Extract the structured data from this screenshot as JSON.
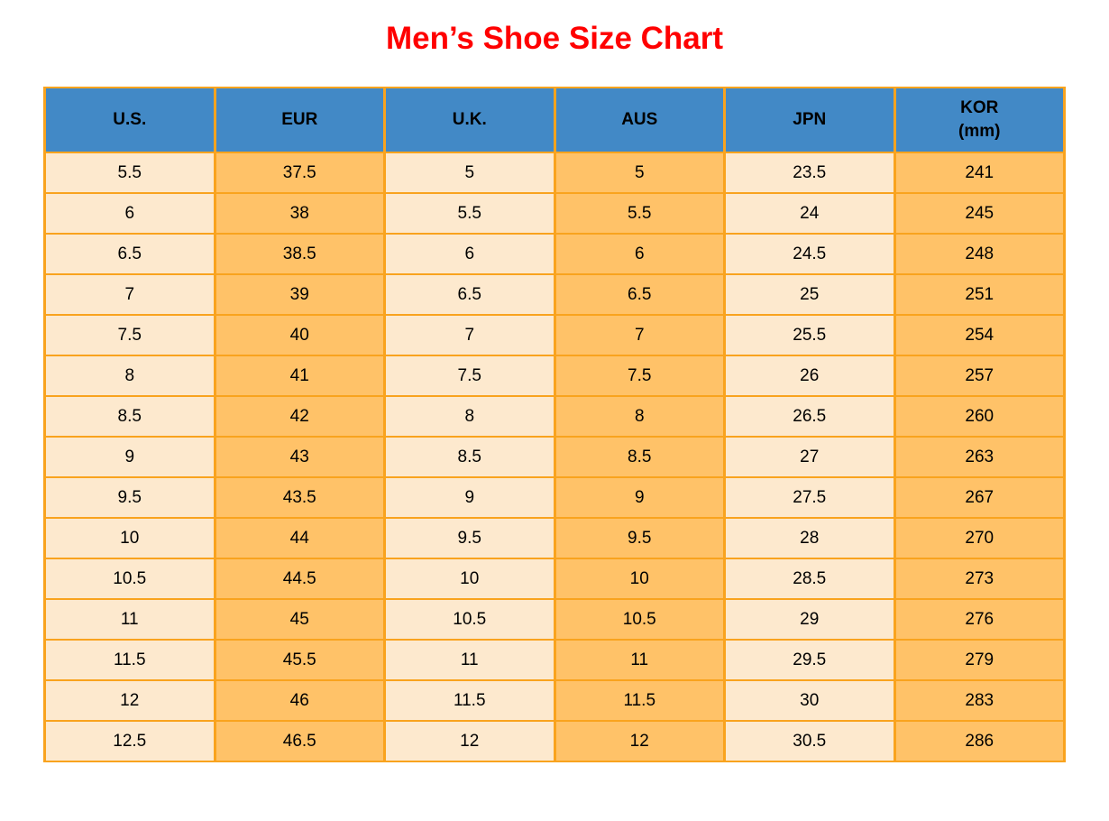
{
  "title": "Men’s Shoe Size Chart",
  "colors": {
    "title": "#ff0000",
    "header_bg": "#4289c6",
    "border": "#f9a31e",
    "cell_light": "#fde9ce",
    "cell_orange": "#ffc268",
    "header_text": "#000000",
    "cell_text": "#000000"
  },
  "chart_data": {
    "type": "table",
    "title": "Men’s Shoe Size Chart",
    "columns": [
      {
        "label": "U.S.",
        "sublabel": ""
      },
      {
        "label": "EUR",
        "sublabel": ""
      },
      {
        "label": "U.K.",
        "sublabel": ""
      },
      {
        "label": "AUS",
        "sublabel": ""
      },
      {
        "label": "JPN",
        "sublabel": ""
      },
      {
        "label": "KOR",
        "sublabel": "(mm)"
      }
    ],
    "rows": [
      [
        "5.5",
        "37.5",
        "5",
        "5",
        "23.5",
        "241"
      ],
      [
        "6",
        "38",
        "5.5",
        "5.5",
        "24",
        "245"
      ],
      [
        "6.5",
        "38.5",
        "6",
        "6",
        "24.5",
        "248"
      ],
      [
        "7",
        "39",
        "6.5",
        "6.5",
        "25",
        "251"
      ],
      [
        "7.5",
        "40",
        "7",
        "7",
        "25.5",
        "254"
      ],
      [
        "8",
        "41",
        "7.5",
        "7.5",
        "26",
        "257"
      ],
      [
        "8.5",
        "42",
        "8",
        "8",
        "26.5",
        "260"
      ],
      [
        "9",
        "43",
        "8.5",
        "8.5",
        "27",
        "263"
      ],
      [
        "9.5",
        "43.5",
        "9",
        "9",
        "27.5",
        "267"
      ],
      [
        "10",
        "44",
        "9.5",
        "9.5",
        "28",
        "270"
      ],
      [
        "10.5",
        "44.5",
        "10",
        "10",
        "28.5",
        "273"
      ],
      [
        "11",
        "45",
        "10.5",
        "10.5",
        "29",
        "276"
      ],
      [
        "11.5",
        "45.5",
        "11",
        "11",
        "29.5",
        "279"
      ],
      [
        "12",
        "46",
        "11.5",
        "11.5",
        "30",
        "283"
      ],
      [
        "12.5",
        "46.5",
        "12",
        "12",
        "30.5",
        "286"
      ]
    ],
    "layout": {
      "column_fill_pattern": [
        "light",
        "orange",
        "light",
        "orange",
        "light",
        "orange"
      ],
      "grid": true,
      "header_background": "blue"
    }
  }
}
